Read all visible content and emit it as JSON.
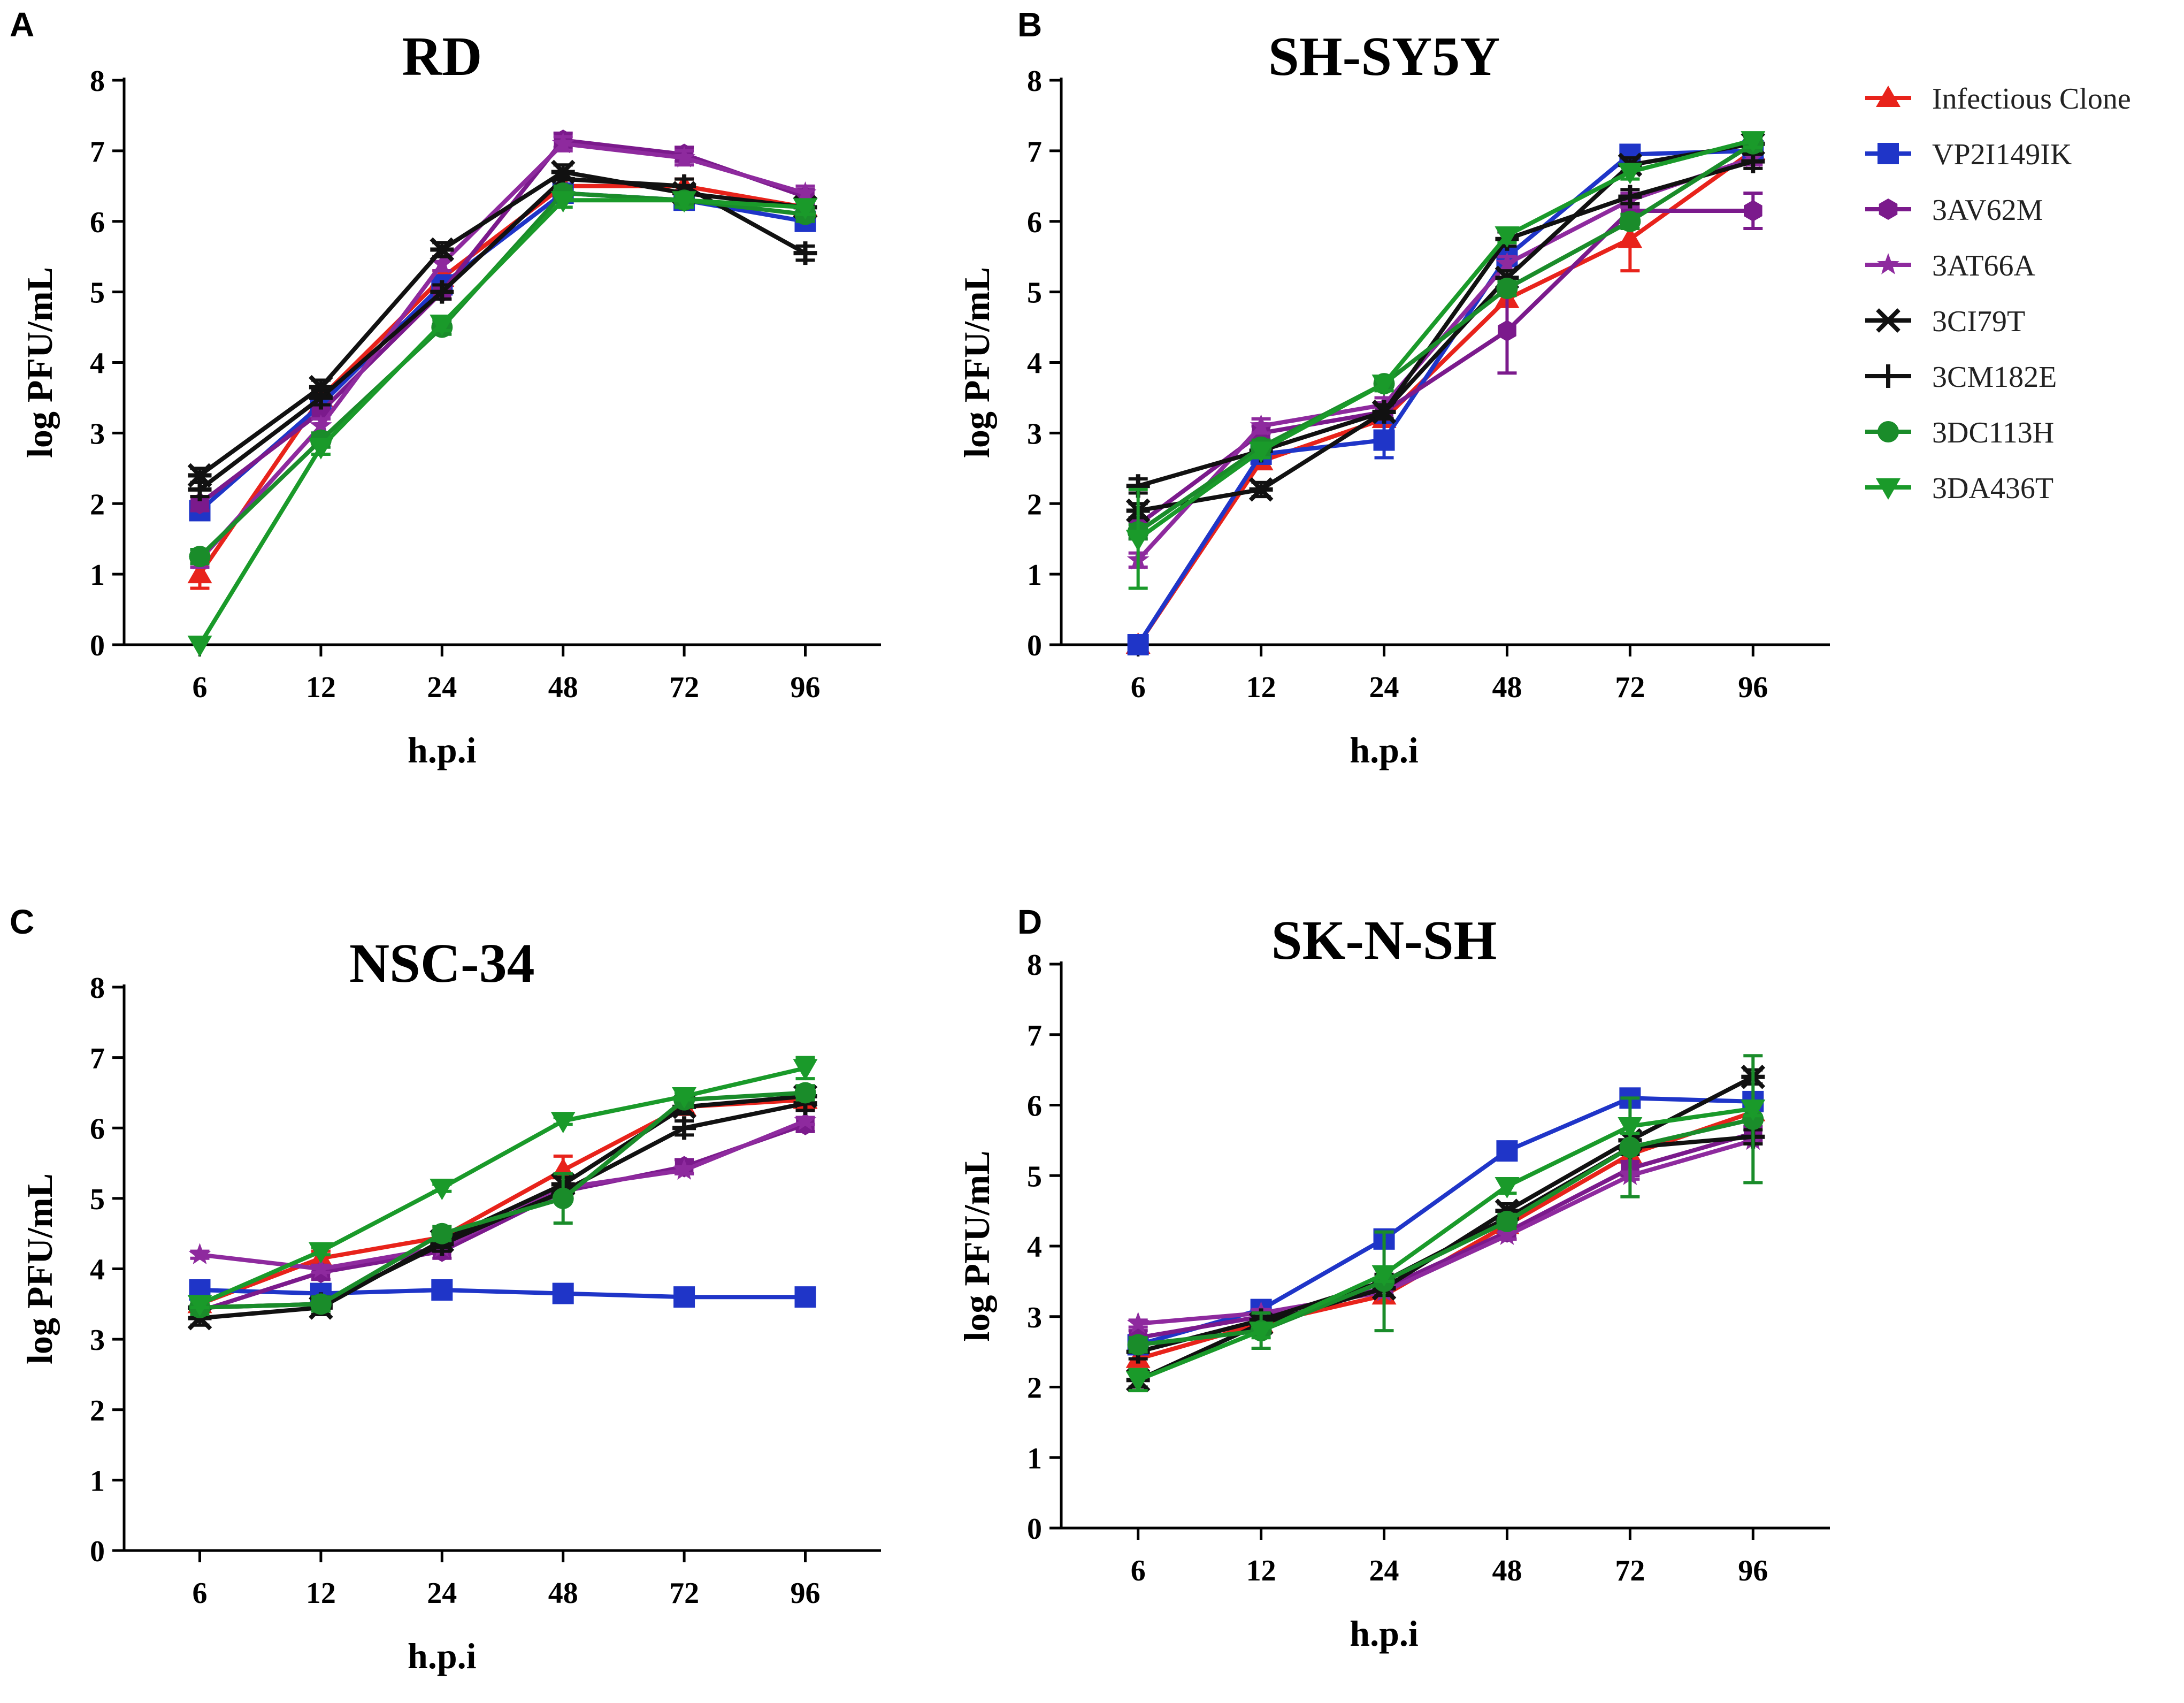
{
  "legend": [
    {
      "name": "Infectious Clone",
      "color": "#e8231b",
      "marker": "triangle-up"
    },
    {
      "name": "VP2I149IK",
      "color": "#1f35c8",
      "marker": "square"
    },
    {
      "name": "3AV62M",
      "color": "#7b1a8c",
      "marker": "hexagon"
    },
    {
      "name": "3AT66A",
      "color": "#8e2a9e",
      "marker": "star"
    },
    {
      "name": "3CI79T",
      "color": "#111111",
      "marker": "asterisk"
    },
    {
      "name": "3CM182E",
      "color": "#111111",
      "marker": "plus"
    },
    {
      "name": "3DC113H",
      "color": "#1a8c2a",
      "marker": "circle"
    },
    {
      "name": "3DA436T",
      "color": "#1a9a2a",
      "marker": "triangle-down"
    }
  ],
  "chart_data": [
    {
      "panel": "A",
      "type": "line",
      "title": "RD",
      "xlabel": "h.p.i",
      "ylabel": "log PFU/mL",
      "categories": [
        "6",
        "12",
        "24",
        "48",
        "72",
        "96"
      ],
      "yticks": [
        "0",
        "1",
        "2",
        "3",
        "4",
        "5",
        "6",
        "7",
        "8"
      ],
      "ylim": [
        0,
        8
      ],
      "series": [
        {
          "name": "Infectious Clone",
          "values": [
            1.0,
            3.5,
            5.2,
            6.5,
            6.5,
            6.2
          ],
          "err": [
            0.2,
            0.1,
            0.1,
            0.1,
            0.1,
            0.1
          ]
        },
        {
          "name": "VP2I149IK",
          "values": [
            1.9,
            3.4,
            5.1,
            6.4,
            6.3,
            6.0
          ],
          "err": [
            0.1,
            0.1,
            0.1,
            0.1,
            0.1,
            0.1
          ]
        },
        {
          "name": "3AV62M",
          "values": [
            2.0,
            3.3,
            5.0,
            7.15,
            6.95,
            6.35
          ],
          "err": [
            0.1,
            0.1,
            0.1,
            0.1,
            0.1,
            0.1
          ]
        },
        {
          "name": "3AT66A",
          "values": [
            1.2,
            3.1,
            5.4,
            7.1,
            6.9,
            6.4
          ],
          "err": [
            0.1,
            0.1,
            0.1,
            0.1,
            0.1,
            0.1
          ]
        },
        {
          "name": "3CI79T",
          "values": [
            2.4,
            3.65,
            5.6,
            6.7,
            6.4,
            6.2
          ],
          "err": [
            0.1,
            0.1,
            0.1,
            0.1,
            0.1,
            0.1
          ]
        },
        {
          "name": "3CM182E",
          "values": [
            2.2,
            3.5,
            5.0,
            6.6,
            6.5,
            5.55
          ],
          "err": [
            0.1,
            0.1,
            0.1,
            0.1,
            0.1,
            0.1
          ]
        },
        {
          "name": "3DC113H",
          "values": [
            1.25,
            2.9,
            4.5,
            6.4,
            6.3,
            6.1
          ],
          "err": [
            0.1,
            0.1,
            0.1,
            0.1,
            0.1,
            0.1
          ]
        },
        {
          "name": "3DA436T",
          "values": [
            0.0,
            2.8,
            4.55,
            6.3,
            6.3,
            6.2
          ],
          "err": [
            0.0,
            0.1,
            0.1,
            0.1,
            0.1,
            0.1
          ]
        }
      ]
    },
    {
      "panel": "B",
      "type": "line",
      "title": "SH-SY5Y",
      "xlabel": "h.p.i",
      "ylabel": "log PFU/mL",
      "categories": [
        "6",
        "12",
        "24",
        "48",
        "72",
        "96"
      ],
      "yticks": [
        "0",
        "1",
        "2",
        "3",
        "4",
        "5",
        "6",
        "7",
        "8"
      ],
      "ylim": [
        0,
        8
      ],
      "series": [
        {
          "name": "Infectious Clone",
          "values": [
            0.0,
            2.6,
            3.2,
            4.9,
            5.75,
            7.0
          ],
          "err": [
            0.0,
            0.1,
            0.1,
            0.1,
            0.45,
            0.1
          ]
        },
        {
          "name": "VP2I149IK",
          "values": [
            0.0,
            2.7,
            2.9,
            5.5,
            6.95,
            7.0
          ],
          "err": [
            0.0,
            0.1,
            0.25,
            0.1,
            0.1,
            0.1
          ]
        },
        {
          "name": "3AV62M",
          "values": [
            1.7,
            3.0,
            3.3,
            4.45,
            6.15,
            6.15
          ],
          "err": [
            0.2,
            0.1,
            0.1,
            0.6,
            0.1,
            0.25
          ]
        },
        {
          "name": "3AT66A",
          "values": [
            1.2,
            3.1,
            3.4,
            5.4,
            6.3,
            6.9
          ],
          "err": [
            0.1,
            0.1,
            0.1,
            0.1,
            0.1,
            0.1
          ]
        },
        {
          "name": "3CI79T",
          "values": [
            1.9,
            2.2,
            3.3,
            5.2,
            6.8,
            7.1
          ],
          "err": [
            0.1,
            0.1,
            0.1,
            0.1,
            0.1,
            0.1
          ]
        },
        {
          "name": "3CM182E",
          "values": [
            2.25,
            2.75,
            3.3,
            5.75,
            6.35,
            6.85
          ],
          "err": [
            0.1,
            0.1,
            0.1,
            0.1,
            0.1,
            0.1
          ]
        },
        {
          "name": "3DC113H",
          "values": [
            1.6,
            2.8,
            3.7,
            5.05,
            6.0,
            7.1
          ],
          "err": [
            0.1,
            0.1,
            0.1,
            0.1,
            0.1,
            0.1
          ]
        },
        {
          "name": "3DA436T",
          "values": [
            1.5,
            2.75,
            3.7,
            5.8,
            6.7,
            7.15
          ],
          "err": [
            0.7,
            0.1,
            0.1,
            0.1,
            0.1,
            0.1
          ]
        }
      ]
    },
    {
      "panel": "C",
      "type": "line",
      "title": "NSC-34",
      "xlabel": "h.p.i",
      "ylabel": "log PFU/mL",
      "categories": [
        "6",
        "12",
        "24",
        "48",
        "72",
        "96"
      ],
      "yticks": [
        "0",
        "1",
        "2",
        "3",
        "4",
        "5",
        "6",
        "7",
        "8"
      ],
      "ylim": [
        0,
        8
      ],
      "series": [
        {
          "name": "Infectious Clone",
          "values": [
            3.5,
            4.15,
            4.45,
            5.4,
            6.3,
            6.4
          ],
          "err": [
            0.1,
            0.1,
            0.1,
            0.2,
            0.1,
            0.1
          ]
        },
        {
          "name": "VP2I149IK",
          "values": [
            3.7,
            3.65,
            3.7,
            3.65,
            3.6,
            3.6
          ],
          "err": [
            0.05,
            0.05,
            0.05,
            0.05,
            0.05,
            0.05
          ]
        },
        {
          "name": "3AV62M",
          "values": [
            3.4,
            3.95,
            4.25,
            5.1,
            5.45,
            6.05
          ],
          "err": [
            0.1,
            0.1,
            0.1,
            0.1,
            0.1,
            0.1
          ]
        },
        {
          "name": "3AT66A",
          "values": [
            4.2,
            4.0,
            4.3,
            5.15,
            5.4,
            6.1
          ],
          "err": [
            0.05,
            0.05,
            0.05,
            0.05,
            0.05,
            0.05
          ]
        },
        {
          "name": "3CI79T",
          "values": [
            3.3,
            3.45,
            4.4,
            5.2,
            6.3,
            6.45
          ],
          "err": [
            0.1,
            0.1,
            0.1,
            0.1,
            0.1,
            0.1
          ]
        },
        {
          "name": "3CM182E",
          "values": [
            3.45,
            3.5,
            4.35,
            5.1,
            6.0,
            6.35
          ],
          "err": [
            0.1,
            0.1,
            0.1,
            0.1,
            0.1,
            0.1
          ]
        },
        {
          "name": "3DC113H",
          "values": [
            3.45,
            3.5,
            4.5,
            5.0,
            6.4,
            6.5
          ],
          "err": [
            0.1,
            0.1,
            0.1,
            0.35,
            0.1,
            0.1
          ]
        },
        {
          "name": "3DA436T",
          "values": [
            3.5,
            4.25,
            5.15,
            6.1,
            6.45,
            6.85
          ],
          "err": [
            0.05,
            0.05,
            0.05,
            0.05,
            0.05,
            0.15
          ]
        }
      ]
    },
    {
      "panel": "D",
      "type": "line",
      "title": "SK-N-SH",
      "xlabel": "h.p.i",
      "ylabel": "log PFU/mL",
      "categories": [
        "6",
        "12",
        "24",
        "48",
        "72",
        "96"
      ],
      "yticks": [
        "0",
        "1",
        "2",
        "3",
        "4",
        "5",
        "6",
        "7",
        "8"
      ],
      "ylim": [
        0,
        8
      ],
      "series": [
        {
          "name": "Infectious Clone",
          "values": [
            2.4,
            2.9,
            3.3,
            4.3,
            5.3,
            5.9
          ],
          "err": [
            0.1,
            0.1,
            0.1,
            0.1,
            0.1,
            0.1
          ]
        },
        {
          "name": "VP2I149IK",
          "values": [
            2.6,
            3.1,
            4.1,
            5.35,
            6.1,
            6.05
          ],
          "err": [
            0.1,
            0.1,
            0.1,
            0.1,
            0.1,
            0.1
          ]
        },
        {
          "name": "3AV62M",
          "values": [
            2.7,
            3.0,
            3.4,
            4.2,
            5.1,
            5.6
          ],
          "err": [
            0.1,
            0.1,
            0.1,
            0.1,
            0.1,
            0.1
          ]
        },
        {
          "name": "3AT66A",
          "values": [
            2.9,
            3.05,
            3.35,
            4.15,
            5.0,
            5.5
          ],
          "err": [
            0.05,
            0.05,
            0.05,
            0.05,
            0.05,
            0.05
          ]
        },
        {
          "name": "3CI79T",
          "values": [
            2.1,
            2.9,
            3.4,
            4.5,
            5.5,
            6.4
          ],
          "err": [
            0.1,
            0.1,
            0.1,
            0.1,
            0.1,
            0.1
          ]
        },
        {
          "name": "3CM182E",
          "values": [
            2.5,
            2.95,
            3.5,
            4.4,
            5.4,
            5.55
          ],
          "err": [
            0.1,
            0.1,
            0.1,
            0.1,
            0.1,
            0.1
          ]
        },
        {
          "name": "3DC113H",
          "values": [
            2.6,
            2.8,
            3.5,
            4.35,
            5.4,
            5.8
          ],
          "err": [
            0.1,
            0.25,
            0.7,
            0.1,
            0.7,
            0.9
          ]
        },
        {
          "name": "3DA436T",
          "values": [
            2.1,
            2.8,
            3.6,
            4.85,
            5.7,
            5.95
          ],
          "err": [
            0.15,
            0.1,
            0.1,
            0.1,
            0.1,
            0.1
          ]
        }
      ]
    }
  ]
}
